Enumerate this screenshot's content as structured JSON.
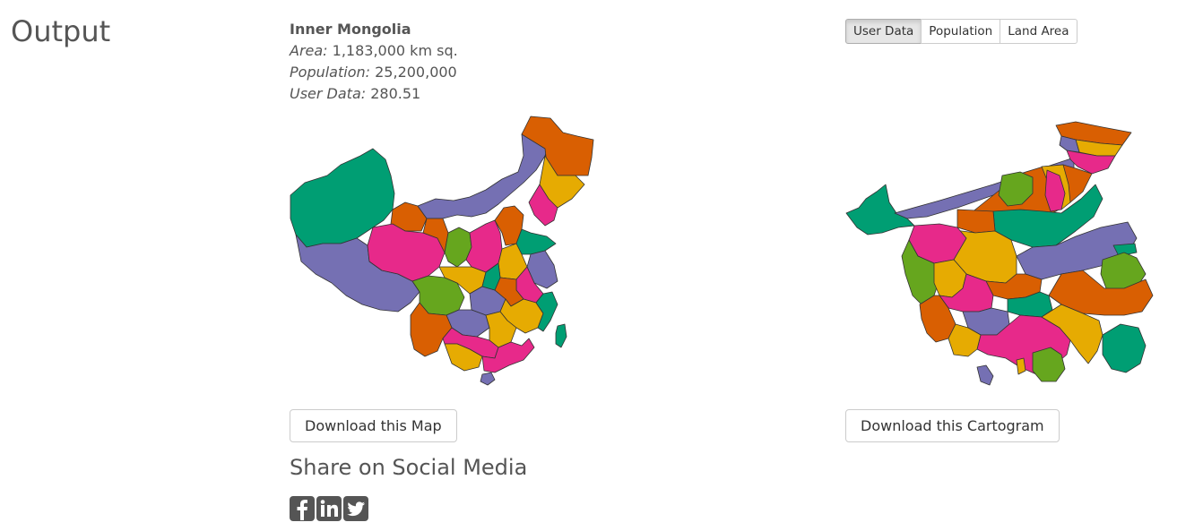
{
  "page": {
    "heading": "Output"
  },
  "info": {
    "region_name": "Inner Mongolia",
    "area_label": "Area:",
    "area_value": "1,183,000 km sq.",
    "population_label": "Population:",
    "population_value": "25,200,000",
    "user_data_label": "User Data:",
    "user_data_value": "280.51"
  },
  "toggle": {
    "options": [
      "User Data",
      "Population",
      "Land Area"
    ],
    "active": "User Data"
  },
  "buttons": {
    "download_map": "Download this Map",
    "download_cartogram": "Download this Cartogram"
  },
  "share": {
    "title": "Share on Social Media",
    "icons": [
      "facebook-icon",
      "linkedin-icon",
      "twitter-icon"
    ]
  },
  "colors": {
    "teal": "#009e73",
    "purple": "#7570b3",
    "orange": "#d95f02",
    "pink": "#e7298a",
    "green": "#66a61e",
    "yellow": "#e6ab02",
    "icon_bg": "#555555"
  }
}
